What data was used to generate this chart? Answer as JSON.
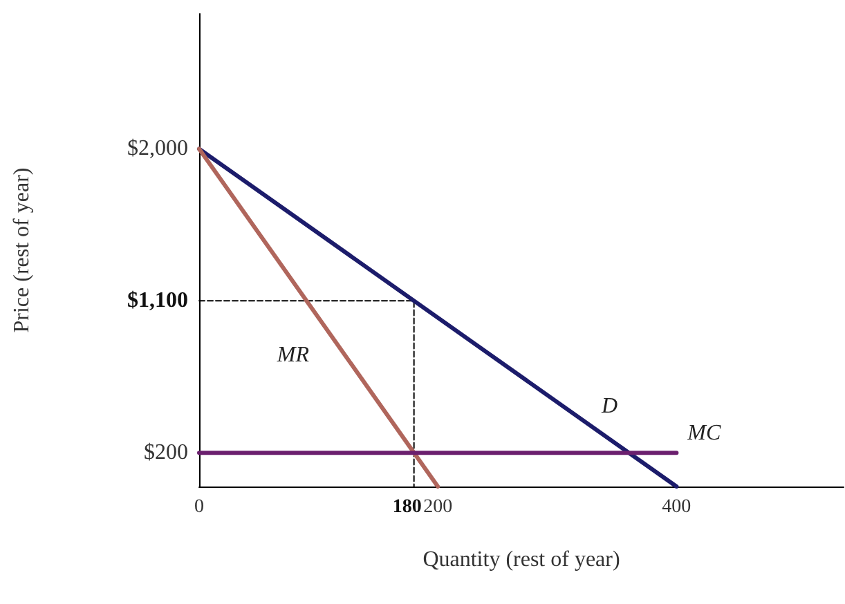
{
  "chart_data": {
    "type": "line",
    "xlabel": "Quantity (rest of year)",
    "ylabel": "Price (rest of year)",
    "xlim": [
      0,
      540
    ],
    "ylim": [
      0,
      2800
    ],
    "xticks": [
      0,
      180,
      200,
      400
    ],
    "yticks": [
      {
        "value": 200,
        "label": "$200"
      },
      {
        "value": 1100,
        "label": "$1,100"
      },
      {
        "value": 2000,
        "label": "$2,000"
      }
    ],
    "grid": false,
    "legend": false,
    "marker": "none",
    "series": [
      {
        "name": "D",
        "color": "#1c1c6b",
        "x": [
          0,
          400
        ],
        "values": [
          2000,
          0
        ]
      },
      {
        "name": "MR",
        "color": "#b0665c",
        "x": [
          0,
          200
        ],
        "values": [
          2000,
          0
        ]
      },
      {
        "name": "MC",
        "color": "#6b1f6e",
        "x": [
          0,
          400
        ],
        "values": [
          200,
          200
        ]
      },
      {
        "color": "#000000",
        "line_style": "dashed",
        "x": [
          0,
          180,
          180
        ],
        "values": [
          1100,
          1100,
          0
        ]
      }
    ]
  }
}
